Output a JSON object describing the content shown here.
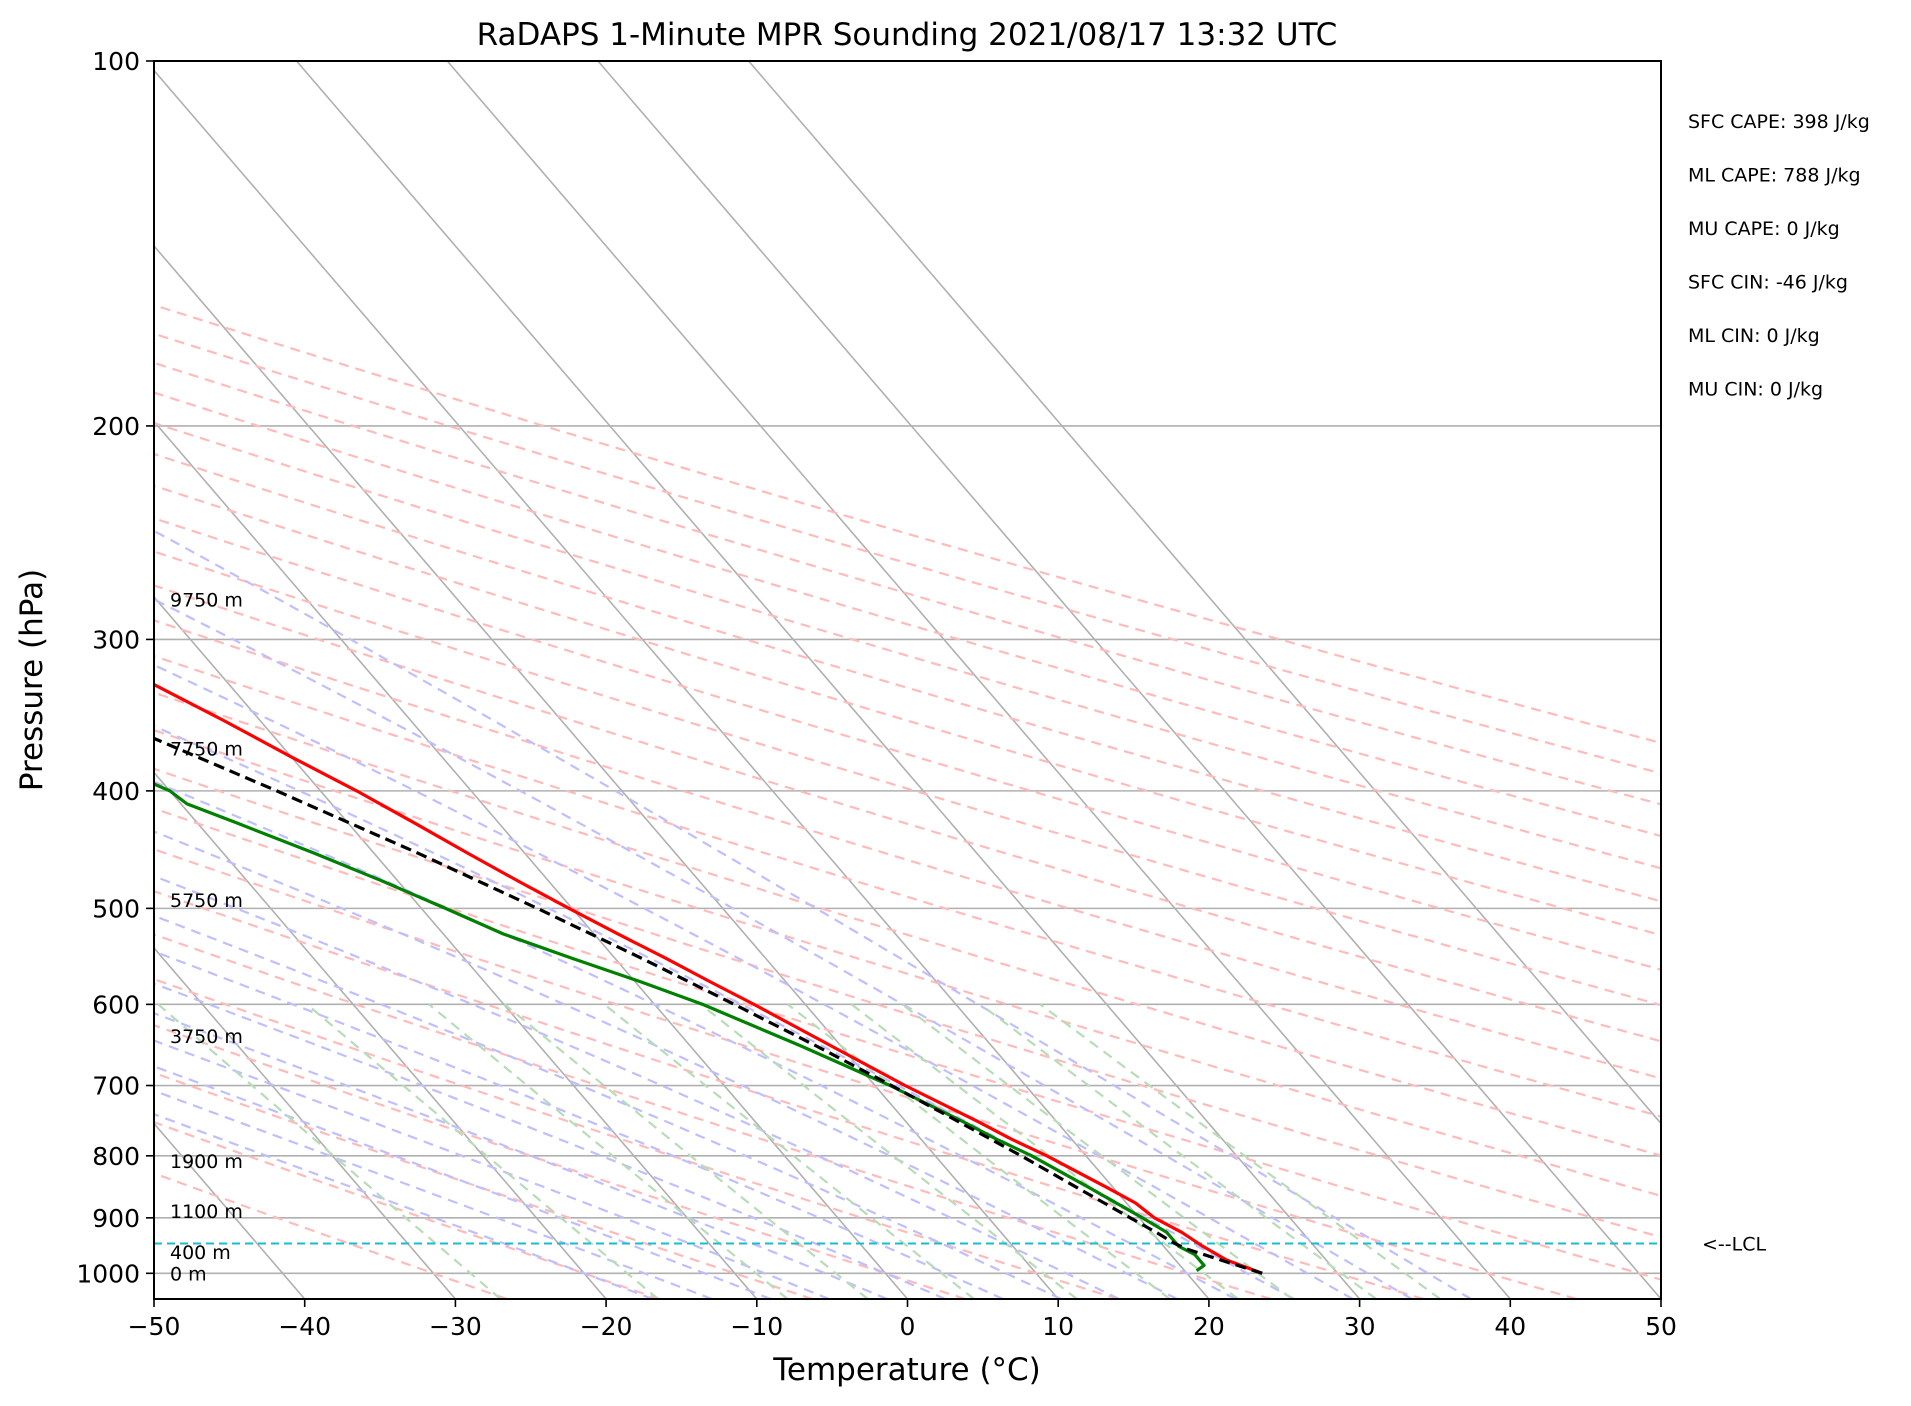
{
  "chart_data": {
    "type": "line",
    "title": "RaDAPS 1-Minute MPR Sounding 2021/08/17 13:32 UTC",
    "xlabel": "Temperature (°C)",
    "ylabel": "Pressure (hPa)",
    "xlim": [
      -50,
      50
    ],
    "ylim": [
      1050,
      100
    ],
    "yscale": "log",
    "skew": true,
    "grid": true,
    "x_ticks": [
      -50,
      -40,
      -30,
      -20,
      -10,
      0,
      10,
      20,
      30,
      40,
      50
    ],
    "x_tick_labels": [
      "−50",
      "−40",
      "−30",
      "−20",
      "−10",
      "0",
      "10",
      "20",
      "30",
      "40",
      "50"
    ],
    "y_ticks": [
      100,
      200,
      300,
      400,
      500,
      600,
      700,
      800,
      900,
      1000
    ],
    "y_tick_labels": [
      "100",
      "200",
      "300",
      "400",
      "500",
      "600",
      "700",
      "800",
      "900",
      "1000"
    ],
    "series": [
      {
        "color": "#ff0000",
        "points": [
          [
            1000,
            25.0
          ],
          [
            975,
            23.4
          ],
          [
            950,
            22.6
          ],
          [
            925,
            22.0
          ],
          [
            900,
            21.0
          ],
          [
            875,
            20.6
          ],
          [
            850,
            19.6
          ],
          [
            800,
            17.4
          ],
          [
            775,
            16.0
          ],
          [
            750,
            14.8
          ],
          [
            700,
            12.0
          ],
          [
            650,
            9.4
          ],
          [
            600,
            6.6
          ],
          [
            575,
            5.0
          ],
          [
            550,
            3.4
          ],
          [
            525,
            1.6
          ],
          [
            500,
            -0.2
          ],
          [
            475,
            -2.0
          ],
          [
            450,
            -3.8
          ],
          [
            425,
            -5.6
          ],
          [
            400,
            -7.6
          ],
          [
            375,
            -10.0
          ],
          [
            350,
            -12.4
          ],
          [
            325,
            -15.2
          ],
          [
            300,
            -18.4
          ],
          [
            277,
            -21.6
          ]
        ]
      },
      {
        "color": "#008000",
        "points": [
          [
            995,
            20.8
          ],
          [
            985,
            21.6
          ],
          [
            965,
            21.6
          ],
          [
            950,
            21.0
          ],
          [
            925,
            21.0
          ],
          [
            900,
            20.2
          ],
          [
            850,
            18.4
          ],
          [
            800,
            16.4
          ],
          [
            775,
            15.0
          ],
          [
            750,
            13.8
          ],
          [
            700,
            11.0
          ],
          [
            650,
            7.4
          ],
          [
            600,
            3.2
          ],
          [
            575,
            0.4
          ],
          [
            550,
            -2.8
          ],
          [
            525,
            -6.0
          ],
          [
            500,
            -8.4
          ],
          [
            475,
            -11.0
          ],
          [
            450,
            -14.0
          ],
          [
            425,
            -17.4
          ],
          [
            410,
            -19.6
          ],
          [
            400,
            -20.0
          ],
          [
            375,
            -23.2
          ],
          [
            350,
            -26.0
          ],
          [
            325,
            -28.6
          ],
          [
            315,
            -28.6
          ],
          [
            305,
            -29.6
          ],
          [
            295,
            -30.0
          ],
          [
            285,
            -31.6
          ],
          [
            277,
            -33.8
          ]
        ]
      },
      {
        "color": "#000000",
        "dashed": true,
        "points": [
          [
            1000,
            25.0
          ],
          [
            975,
            23.0
          ],
          [
            955,
            21.4
          ],
          [
            945,
            20.9
          ],
          [
            925,
            20.3
          ],
          [
            900,
            19.4
          ],
          [
            850,
            17.6
          ],
          [
            800,
            15.7
          ],
          [
            750,
            13.5
          ],
          [
            700,
            11.1
          ],
          [
            650,
            8.4
          ],
          [
            600,
            5.3
          ],
          [
            550,
            1.8
          ],
          [
            500,
            -2.3
          ],
          [
            450,
            -7.1
          ],
          [
            400,
            -12.9
          ],
          [
            350,
            -19.8
          ],
          [
            300,
            -28.2
          ],
          [
            277,
            -32.7
          ]
        ]
      }
    ],
    "height_labels": [
      {
        "text": "0 m",
        "p": 1000
      },
      {
        "text": "400 m",
        "p": 960
      },
      {
        "text": "1100 m",
        "p": 888
      },
      {
        "text": "1900 m",
        "p": 808
      },
      {
        "text": "3750 m",
        "p": 637
      },
      {
        "text": "5750 m",
        "p": 492
      },
      {
        "text": "7750 m",
        "p": 369
      },
      {
        "text": "9750 m",
        "p": 278
      }
    ],
    "lcl": {
      "p": 945,
      "label": "<--LCL"
    },
    "stats": [
      "SFC CAPE: 398 J/kg",
      "ML CAPE: 788 J/kg",
      "MU CAPE: 0 J/kg",
      "SFC CIN: -46 J/kg",
      "ML CIN: 0 J/kg",
      "MU CIN: 0 J/kg"
    ],
    "background_lines": {
      "isotherm_color": "#b0b0b0",
      "dry_adiabat_color": "#ffbbbb",
      "moist_adiabat_color": "#bfbfff",
      "mixing_ratio_color": "#b8dcb8",
      "lcl_color": "#17becf"
    }
  }
}
